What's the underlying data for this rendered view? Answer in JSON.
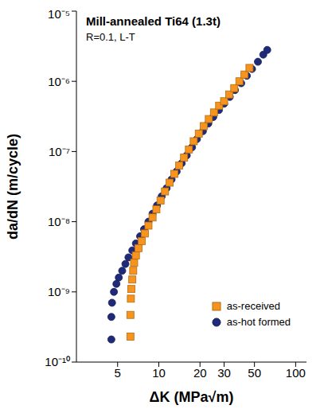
{
  "chart_data": {
    "type": "scatter",
    "title": "Mill-annealed Ti64 (1.3t)",
    "subtitle": "R=0.1, L-T",
    "x_label": "ΔK (MPa√m)",
    "y_label": "da/dN (m/cycle)",
    "log": true,
    "grid": false,
    "legend": "lower right",
    "xlim": [
      2.5,
      120
    ],
    "xticks": [
      5,
      10,
      20,
      30,
      50,
      100
    ],
    "ylim": [
      1e-10,
      1e-05
    ],
    "yticks": [
      {
        "value": 1e-10,
        "label": "10⁻¹⁰"
      },
      {
        "value": 1e-09,
        "label": "10⁻⁹"
      },
      {
        "value": 1e-08,
        "label": "10⁻⁸"
      },
      {
        "value": 1e-07,
        "label": "10⁻⁷"
      },
      {
        "value": 1e-06,
        "label": "10⁻⁶"
      },
      {
        "value": 1e-05,
        "label": "10⁻⁵"
      }
    ],
    "series": [
      {
        "name": "as-hot formed",
        "color": "#1f2a78",
        "marker": "circle",
        "x": [
          4.5,
          4.5,
          4.55,
          4.7,
          4.9,
          5.1,
          5.4,
          5.7,
          6.0,
          6.4,
          6.8,
          7.3,
          7.8,
          8.4,
          9.0,
          9.7,
          10.5,
          11.4,
          12.4,
          13.5,
          14.7,
          16,
          17.5,
          19,
          21,
          23,
          25,
          27.5,
          30,
          33,
          36,
          40,
          44,
          48,
          53,
          58,
          62
        ],
        "values": [
          2.1e-10,
          4.4e-10,
          7e-10,
          1e-09,
          1.3e-09,
          1.6e-09,
          2e-09,
          2.5e-09,
          3.1e-09,
          3.9e-09,
          4.9e-09,
          6.2e-09,
          7.8e-09,
          1e-08,
          1.3e-08,
          1.7e-08,
          2.3e-08,
          3e-08,
          4e-08,
          5.2e-08,
          6.8e-08,
          8.8e-08,
          1.15e-07,
          1.5e-07,
          1.95e-07,
          2.5e-07,
          3.1e-07,
          3.9e-07,
          4.8e-07,
          6e-07,
          7.5e-07,
          9.4e-07,
          1.2e-06,
          1.5e-06,
          1.9e-06,
          2.4e-06,
          2.8e-06
        ]
      },
      {
        "name": "as-received",
        "color": "#f7941d",
        "marker": "square",
        "x": [
          6.2,
          6.2,
          6.25,
          6.3,
          6.4,
          6.5,
          6.6,
          6.8,
          7.1,
          7.5,
          7.9,
          8.4,
          9.0,
          9.6,
          10.3,
          11.1,
          12,
          13,
          14.1,
          15.3,
          16.6,
          18,
          19.6,
          21.3,
          23.2,
          25.3,
          27.6,
          30,
          32.7,
          35.6,
          38.8,
          42.3,
          46
        ],
        "values": [
          2.3e-10,
          4.7e-10,
          8e-10,
          1.1e-09,
          1.5e-09,
          2e-09,
          2.6e-09,
          3.3e-09,
          4.2e-09,
          5.3e-09,
          6.8e-09,
          8.8e-09,
          1.15e-08,
          1.5e-08,
          2e-08,
          2.7e-08,
          3.6e-08,
          4.8e-08,
          6.3e-08,
          8.2e-08,
          1.07e-07,
          1.4e-07,
          1.8e-07,
          2.3e-07,
          2.9e-07,
          3.6e-07,
          4.5e-07,
          5.2e-07,
          6.5e-07,
          8e-07,
          1e-06,
          1.25e-06,
          1.55e-06
        ]
      }
    ]
  }
}
